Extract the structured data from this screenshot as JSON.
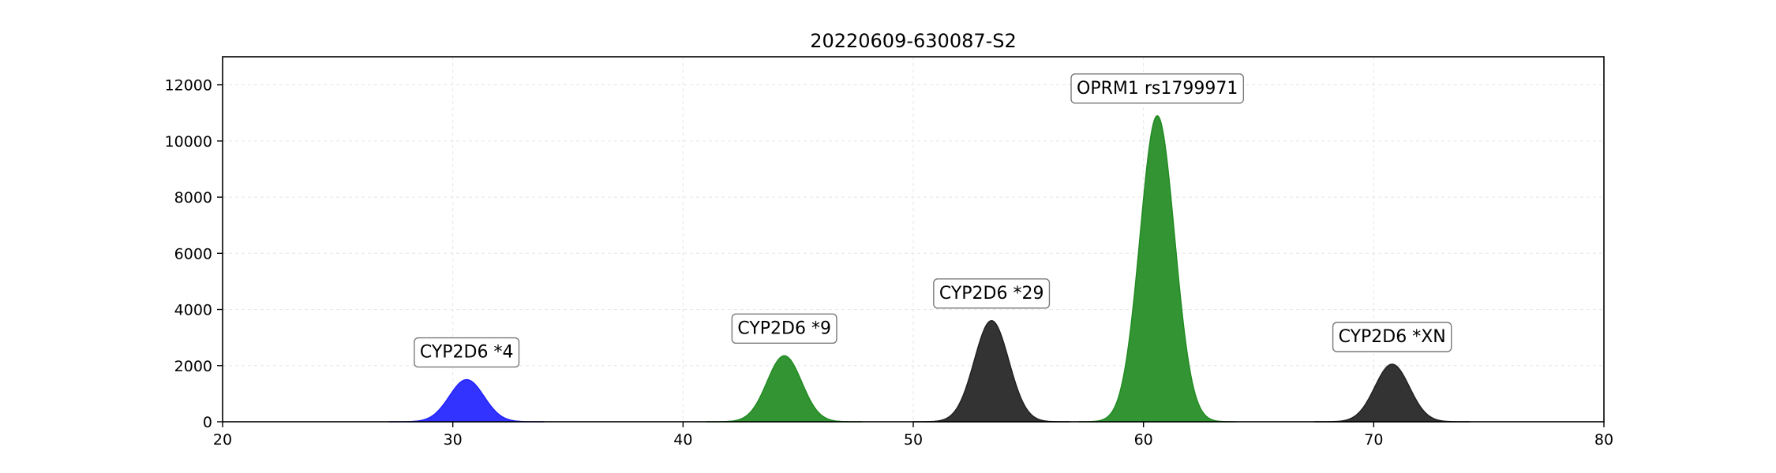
{
  "chart_data": {
    "type": "area",
    "title": "20220609-630087-S2",
    "xlabel": "",
    "ylabel": "",
    "xlim": [
      20,
      80
    ],
    "ylim": [
      0,
      13000
    ],
    "x_ticks": [
      20,
      30,
      40,
      50,
      60,
      70,
      80
    ],
    "y_ticks": [
      0,
      2000,
      4000,
      6000,
      8000,
      10000,
      12000
    ],
    "grid": true,
    "peaks": [
      {
        "label": "CYP2D6 *4",
        "center": 30.6,
        "height": 1500,
        "sigma": 0.75,
        "color": "#2222ff"
      },
      {
        "label": "CYP2D6 *9",
        "center": 44.4,
        "height": 2350,
        "sigma": 0.75,
        "color": "#228b22"
      },
      {
        "label": "CYP2D6 *29",
        "center": 53.4,
        "height": 3600,
        "sigma": 0.75,
        "color": "#222222"
      },
      {
        "label": "OPRM1 rs1799971",
        "center": 60.6,
        "height": 10900,
        "sigma": 0.75,
        "color": "#228b22"
      },
      {
        "label": "CYP2D6 *XN",
        "center": 70.8,
        "height": 2050,
        "sigma": 0.75,
        "color": "#222222"
      }
    ]
  }
}
